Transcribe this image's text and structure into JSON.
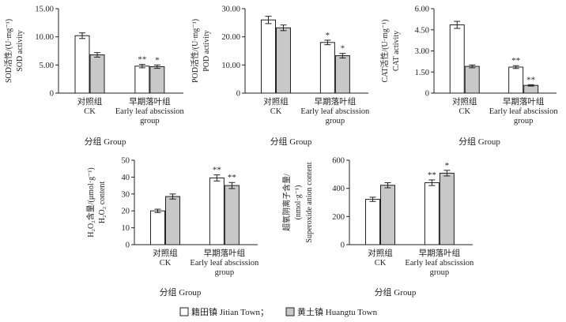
{
  "colors": {
    "jitian": "#ffffff",
    "huangtu": "#c8c8c8",
    "stroke": "#222222"
  },
  "legend": {
    "jitian": "籍田镇 Jitian Town；",
    "huangtu": "黄土镇 Huangtu Town"
  },
  "chart_data": [
    {
      "id": "sod",
      "type": "bar",
      "ylabel": [
        "SOD活性/(U·mg⁻¹)",
        "SOD activity"
      ],
      "xlabel": "分组 Group",
      "categories": [
        [
          "对照组",
          "CK"
        ],
        [
          "早期落叶组",
          "Early leaf abscission",
          "group"
        ]
      ],
      "yticks": [
        "0",
        "5.00",
        "10.00",
        "15.00"
      ],
      "ylim": [
        0,
        15
      ],
      "series": [
        {
          "name": "籍田镇 Jitian Town",
          "values": [
            10.2,
            4.8
          ],
          "errors": [
            0.5,
            0.3
          ]
        },
        {
          "name": "黄土镇 Huangtu Town",
          "values": [
            6.8,
            4.7
          ],
          "errors": [
            0.4,
            0.3
          ]
        }
      ],
      "marks": [
        [
          "",
          ""
        ],
        [
          "**",
          "*"
        ]
      ]
    },
    {
      "id": "pod",
      "type": "bar",
      "ylabel": [
        "POD活性/(U·mg⁻¹)",
        "POD activity"
      ],
      "xlabel": "分组 Group",
      "categories": [
        [
          "对照组",
          "CK"
        ],
        [
          "早期落叶组",
          "Early leaf abscission",
          "group"
        ]
      ],
      "yticks": [
        "0",
        "10.00",
        "20.00",
        "30.00"
      ],
      "ylim": [
        0,
        30
      ],
      "series": [
        {
          "name": "籍田镇 Jitian Town",
          "values": [
            26.0,
            18.0
          ],
          "errors": [
            1.3,
            0.8
          ]
        },
        {
          "name": "黄土镇 Huangtu Town",
          "values": [
            23.2,
            13.3
          ],
          "errors": [
            1.0,
            0.8
          ]
        }
      ],
      "marks": [
        [
          "",
          ""
        ],
        [
          "*",
          "*"
        ]
      ]
    },
    {
      "id": "cat",
      "type": "bar",
      "ylabel": [
        "CAT活性/(U·mg⁻¹)",
        "CAT activity"
      ],
      "xlabel": "分组 Group",
      "categories": [
        [
          "对照组",
          "CK"
        ],
        [
          "早期落叶组",
          "Early leaf abscission",
          "group"
        ]
      ],
      "yticks": [
        "0",
        "1.50",
        "3.00",
        "4.50",
        "6.00"
      ],
      "ylim": [
        0,
        6
      ],
      "series": [
        {
          "name": "籍田镇 Jitian Town",
          "values": [
            4.85,
            1.85
          ],
          "errors": [
            0.25,
            0.1
          ]
        },
        {
          "name": "黄土镇 Huangtu Town",
          "values": [
            1.9,
            0.55
          ],
          "errors": [
            0.1,
            0.05
          ]
        }
      ],
      "marks": [
        [
          "",
          ""
        ],
        [
          "**",
          "**"
        ]
      ]
    },
    {
      "id": "h2o2",
      "type": "bar",
      "ylabel": [
        "H₂O₂含量/(μmol·g⁻¹)",
        "H₂O₂ content"
      ],
      "xlabel": "分组 Group",
      "categories": [
        [
          "对照组",
          "CK"
        ],
        [
          "早期落叶组",
          "Early leaf abscission",
          "group"
        ]
      ],
      "yticks": [
        "0",
        "10",
        "20",
        "30",
        "40",
        "50"
      ],
      "ylim": [
        0,
        50
      ],
      "series": [
        {
          "name": "籍田镇 Jitian Town",
          "values": [
            20.0,
            39.5
          ],
          "errors": [
            1.0,
            1.8
          ]
        },
        {
          "name": "黄土镇 Huangtu Town",
          "values": [
            28.5,
            35.0
          ],
          "errors": [
            1.5,
            1.8
          ]
        }
      ],
      "marks": [
        [
          "",
          ""
        ],
        [
          "**",
          "**"
        ]
      ]
    },
    {
      "id": "superoxide",
      "type": "bar",
      "ylabel": [
        "超氧阴离子含量/",
        "(nmol·g⁻¹)",
        "Superoxide anion content"
      ],
      "xlabel": "分组 Group",
      "categories": [
        [
          "对照组",
          "CK"
        ],
        [
          "早期落叶组",
          "Early leaf abscission",
          "group"
        ]
      ],
      "yticks": [
        "0",
        "200",
        "400",
        "600"
      ],
      "ylim": [
        0,
        600
      ],
      "series": [
        {
          "name": "籍田镇 Jitian Town",
          "values": [
            322,
            440
          ],
          "errors": [
            15,
            20
          ]
        },
        {
          "name": "黄土镇 Huangtu Town",
          "values": [
            422,
            508
          ],
          "errors": [
            18,
            20
          ]
        }
      ],
      "marks": [
        [
          "",
          ""
        ],
        [
          "**",
          "*"
        ]
      ]
    }
  ]
}
